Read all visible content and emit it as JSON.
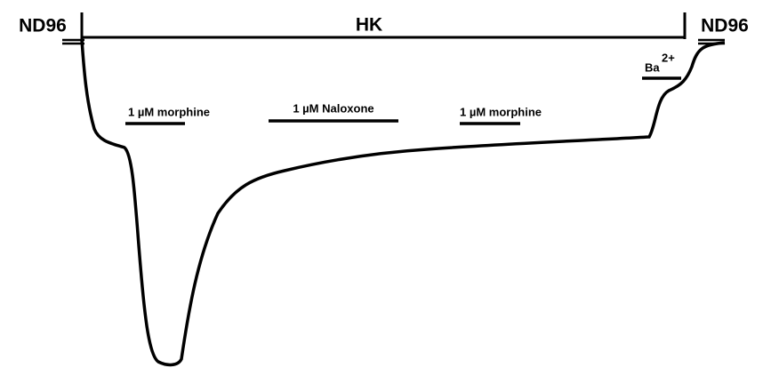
{
  "solutions": {
    "left": "ND96",
    "middle": "HK",
    "right": "ND96"
  },
  "drugs": [
    {
      "label": "1 µM morphine"
    },
    {
      "label": "1 µM Naloxone"
    },
    {
      "label": "1 µM morphine"
    }
  ],
  "barium": {
    "text": "Ba",
    "superscript": "2+"
  }
}
